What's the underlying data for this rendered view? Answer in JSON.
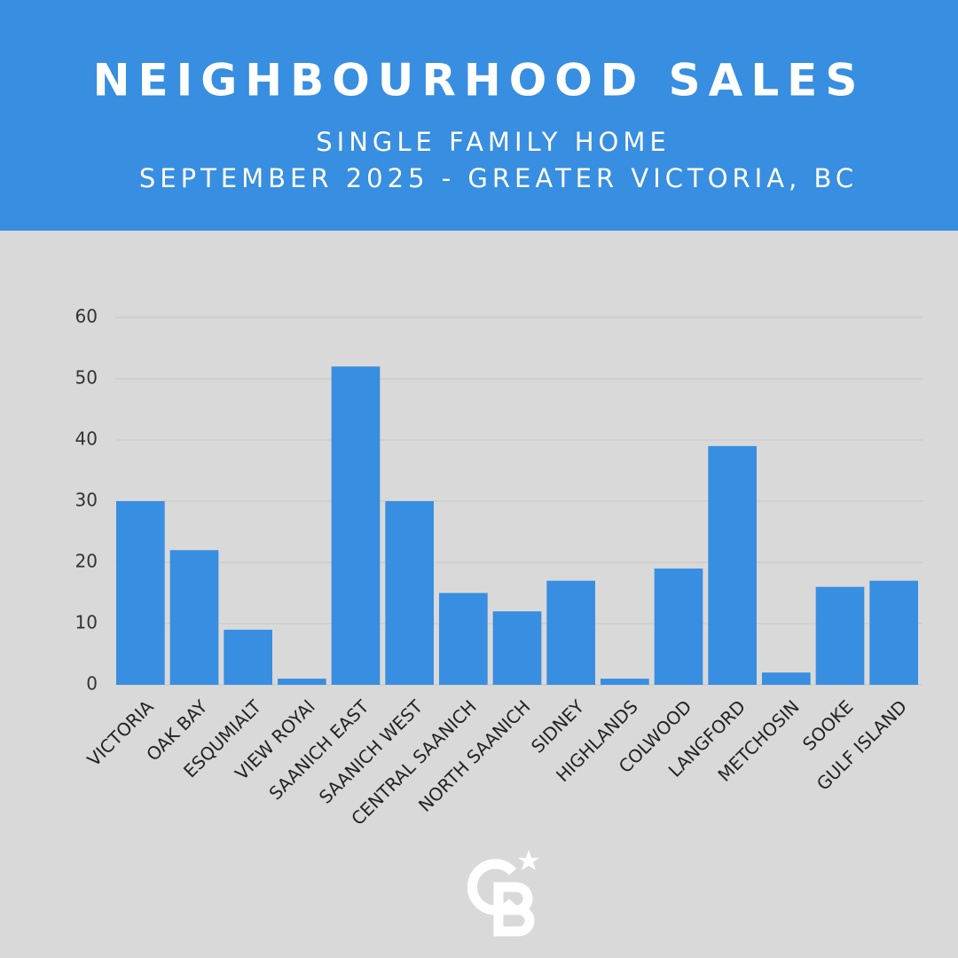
{
  "chart_data": {
    "type": "bar",
    "title": "NEIGHBOURHOOD SALES",
    "subtitle": [
      "SINGLE FAMILY HOME",
      "SEPTEMBER 2025 - GREATER VICTORIA, BC"
    ],
    "categories": [
      "VICTORIA",
      "OAK BAY",
      "ESQUMIALT",
      "VIEW ROYAl",
      "SAANICH EAST",
      "SAANICH WEST",
      "CENTRAL SAANICH",
      "NORTH SAANICH",
      "SIDNEY",
      "HIGHLANDS",
      "COLWOOD",
      "LANGFORD",
      "METCHOSIN",
      "SOOKE",
      "GULF ISLAND"
    ],
    "values": [
      30,
      22,
      9,
      1,
      52,
      30,
      15,
      12,
      17,
      1,
      19,
      39,
      2,
      16,
      17
    ],
    "color": "#388ee0",
    "ylim": [
      0,
      60
    ],
    "yticks": [
      0,
      10,
      20,
      30,
      40,
      50,
      60
    ],
    "grid": true
  }
}
